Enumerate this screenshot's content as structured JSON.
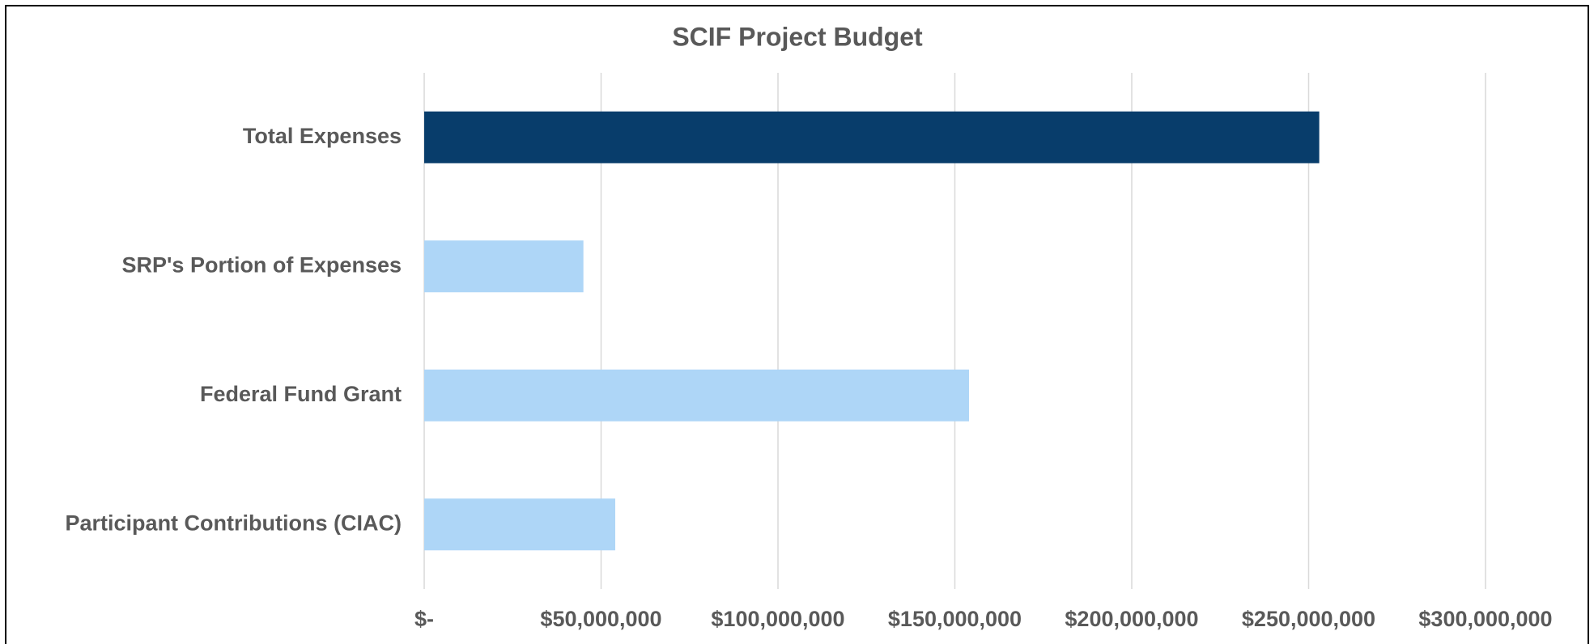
{
  "chart_data": {
    "type": "bar",
    "orientation": "horizontal",
    "title": "SCIF Project Budget",
    "categories": [
      "Total Expenses",
      "SRP's Portion of Expenses",
      "Federal Fund Grant",
      "Participant Contributions (CIAC)"
    ],
    "values": [
      253000000,
      45000000,
      154000000,
      54000000
    ],
    "colors": [
      "#083d6b",
      "#aed6f7",
      "#aed6f7",
      "#aed6f7"
    ],
    "xlim": [
      0,
      300000000
    ],
    "xticks": [
      {
        "value": 0,
        "label": "$-"
      },
      {
        "value": 50000000,
        "label": "$50,000,000"
      },
      {
        "value": 100000000,
        "label": "$100,000,000"
      },
      {
        "value": 150000000,
        "label": "$150,000,000"
      },
      {
        "value": 200000000,
        "label": "$200,000,000"
      },
      {
        "value": 250000000,
        "label": "$250,000,000"
      },
      {
        "value": 300000000,
        "label": "$300,000,000"
      }
    ],
    "grid": true
  }
}
